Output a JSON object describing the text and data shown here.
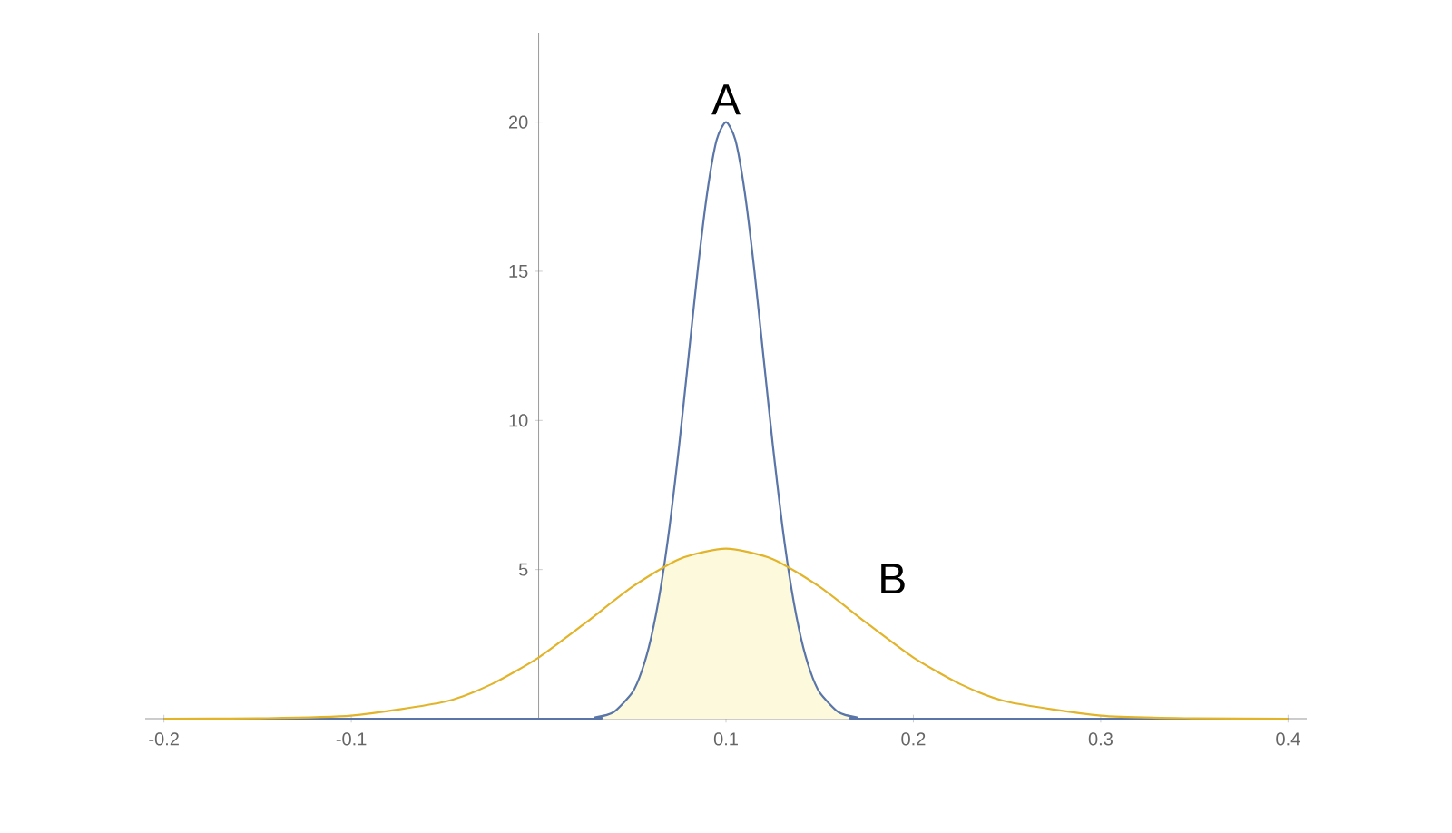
{
  "chart_data": {
    "type": "line",
    "series": [
      {
        "type": "area",
        "color": "#fcf9dc",
        "x": [
          0.03,
          0.04,
          0.05,
          0.055,
          0.06,
          0.065,
          0.068,
          0.075,
          0.1,
          0.125,
          0.132,
          0.135,
          0.14,
          0.145,
          0.15,
          0.16,
          0.17
        ],
        "values": [
          0.04,
          0.22,
          0.88,
          1.59,
          2.71,
          4.33,
          5.3,
          5.35,
          5.7,
          5.35,
          5.3,
          4.33,
          2.71,
          1.59,
          0.88,
          0.22,
          0.04
        ]
      },
      {
        "name": "A",
        "color": "#5a75a8",
        "x": [
          -0.2,
          0.02,
          0.03,
          0.04,
          0.05,
          0.055,
          0.06,
          0.065,
          0.07,
          0.075,
          0.08,
          0.085,
          0.09,
          0.095,
          0.1,
          0.105,
          0.11,
          0.115,
          0.12,
          0.125,
          0.13,
          0.135,
          0.14,
          0.145,
          0.15,
          0.16,
          0.17,
          0.18,
          0.4
        ],
        "values": [
          0,
          0,
          0.04,
          0.22,
          0.88,
          1.59,
          2.71,
          4.33,
          6.49,
          9.16,
          12.13,
          15.1,
          17.65,
          19.4,
          20,
          19.4,
          17.65,
          15.1,
          12.13,
          9.16,
          6.49,
          4.33,
          2.71,
          1.59,
          0.88,
          0.22,
          0.04,
          0,
          0
        ]
      },
      {
        "name": "B",
        "color": "#e2b42a",
        "x": [
          -0.2,
          -0.15,
          -0.1,
          -0.05,
          -0.025,
          0,
          0.025,
          0.05,
          0.075,
          0.1,
          0.125,
          0.15,
          0.175,
          0.2,
          0.225,
          0.25,
          0.3,
          0.35,
          0.4
        ],
        "values": [
          0,
          0.01,
          0.1,
          0.57,
          1.16,
          2.05,
          3.21,
          4.42,
          5.35,
          5.7,
          5.35,
          4.42,
          3.21,
          2.05,
          1.16,
          0.57,
          0.1,
          0.01,
          0
        ]
      }
    ],
    "xlim": [
      -0.21,
      0.41
    ],
    "ylim": [
      0,
      23
    ],
    "xticks": [
      -0.2,
      -0.1,
      0.1,
      0.2,
      0.3,
      0.4
    ],
    "yticks": [
      5,
      10,
      15,
      20
    ],
    "grid": false,
    "marker": "none",
    "line_style": "solid"
  }
}
